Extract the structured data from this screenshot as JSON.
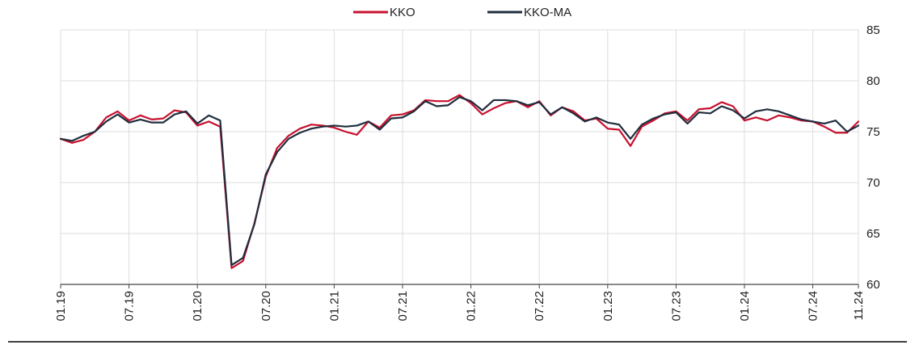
{
  "chart_data": {
    "type": "line",
    "title": "",
    "xlabel": "",
    "ylabel": "",
    "ylim": [
      60,
      85
    ],
    "y_ticks": [
      "60",
      "65",
      "70",
      "75",
      "80",
      "85"
    ],
    "y_axis_side": "right",
    "grid": true,
    "legend_position": "top-center",
    "x_tick_labels": [
      "01.19",
      "07.19",
      "01.20",
      "07.20",
      "01.21",
      "07.21",
      "01.22",
      "07.22",
      "01.23",
      "07.23",
      "01.24",
      "07.24",
      "11.24"
    ],
    "x_tick_indices": [
      0,
      6,
      12,
      18,
      24,
      30,
      36,
      42,
      48,
      54,
      60,
      66,
      70
    ],
    "series": [
      {
        "name": "KKO",
        "color": "#c8102e",
        "values": [
          74.3,
          73.9,
          74.2,
          75.0,
          76.4,
          77.0,
          76.1,
          76.6,
          76.2,
          76.3,
          77.1,
          76.9,
          75.6,
          76.0,
          75.5,
          61.6,
          62.3,
          66.0,
          70.6,
          73.4,
          74.6,
          75.3,
          75.7,
          75.6,
          75.4,
          75.0,
          74.7,
          76.0,
          75.4,
          76.6,
          76.7,
          77.1,
          78.1,
          78.0,
          78.0,
          78.6,
          77.8,
          76.7,
          77.3,
          77.8,
          78.0,
          77.4,
          78.0,
          76.6,
          77.4,
          77.0,
          76.1,
          76.3,
          75.3,
          75.2,
          73.6,
          75.5,
          76.1,
          76.8,
          77.0,
          76.1,
          77.2,
          77.3,
          77.9,
          77.5,
          76.1,
          76.4,
          76.1,
          76.6,
          76.4,
          76.1,
          76.0,
          75.5,
          74.9,
          74.9,
          76.0
        ]
      },
      {
        "name": "KKO-MA",
        "color": "#1f2d3d",
        "values": [
          74.3,
          74.1,
          74.6,
          75.0,
          76.0,
          76.7,
          75.9,
          76.2,
          75.9,
          75.9,
          76.7,
          77.0,
          75.8,
          76.6,
          76.1,
          61.9,
          62.6,
          65.9,
          70.8,
          73.0,
          74.3,
          74.9,
          75.3,
          75.5,
          75.6,
          75.5,
          75.6,
          76.0,
          75.2,
          76.3,
          76.4,
          77.0,
          78.0,
          77.5,
          77.6,
          78.4,
          78.0,
          77.1,
          78.1,
          78.1,
          78.0,
          77.6,
          77.9,
          76.7,
          77.4,
          76.8,
          76.0,
          76.4,
          75.9,
          75.7,
          74.3,
          75.7,
          76.3,
          76.7,
          76.9,
          75.8,
          76.9,
          76.8,
          77.5,
          77.1,
          76.3,
          77.0,
          77.2,
          77.0,
          76.6,
          76.2,
          76.0,
          75.8,
          76.1,
          75.0,
          75.6
        ]
      }
    ]
  }
}
